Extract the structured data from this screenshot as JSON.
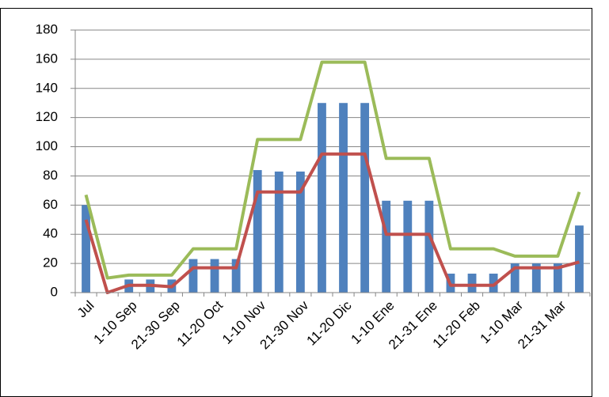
{
  "chart_data": {
    "type": "bar-line",
    "categories": [
      "Jul",
      null,
      "1-10 Sep",
      null,
      "21-30 Sep",
      null,
      "11-20 Oct",
      null,
      "1-10 Nov",
      null,
      "21-30 Nov",
      null,
      "11-20 Dic",
      null,
      "1-10 Ene",
      null,
      "21-31 Ene",
      null,
      "11-20 Feb",
      null,
      "1-10 Mar",
      null,
      "21-31 Mar",
      null
    ],
    "series": [
      {
        "type": "bar",
        "color": "#4f81bd",
        "values": [
          60,
          0,
          9,
          9,
          9,
          23,
          23,
          23,
          84,
          83,
          83,
          130,
          130,
          130,
          63,
          63,
          63,
          13,
          13,
          13,
          20,
          20,
          20,
          46
        ]
      },
      {
        "type": "line",
        "color": "#9bbb59",
        "values": [
          67,
          10,
          12,
          12,
          12,
          30,
          30,
          30,
          105,
          105,
          105,
          158,
          158,
          158,
          92,
          92,
          92,
          30,
          30,
          30,
          25,
          25,
          25,
          69
        ]
      },
      {
        "type": "line",
        "color": "#c0504d",
        "values": [
          50,
          0,
          5,
          5,
          4,
          17,
          17,
          17,
          69,
          69,
          69,
          95,
          95,
          95,
          40,
          40,
          40,
          5,
          5,
          5,
          17,
          17,
          17,
          21
        ]
      }
    ],
    "ylim": [
      0,
      180
    ],
    "yticks": [
      0,
      20,
      40,
      60,
      80,
      100,
      120,
      140,
      160,
      180
    ],
    "grid": true
  }
}
